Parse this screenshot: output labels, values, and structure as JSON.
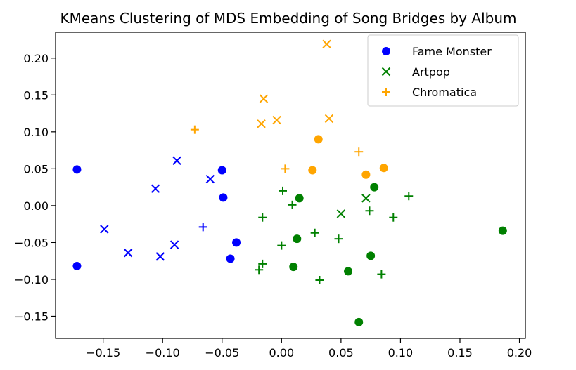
{
  "chart_data": {
    "type": "scatter",
    "title": "KMeans Clustering of MDS Embedding of Song Bridges by Album",
    "xlabel": "",
    "ylabel": "",
    "xlim": [
      -0.19,
      0.205
    ],
    "ylim": [
      -0.18,
      0.235
    ],
    "xticks": [
      -0.15,
      -0.1,
      -0.05,
      0.0,
      0.05,
      0.1,
      0.15,
      0.2
    ],
    "yticks": [
      -0.15,
      -0.1,
      -0.05,
      0.0,
      0.05,
      0.1,
      0.15,
      0.2
    ],
    "xtick_labels": [
      "−0.15",
      "−0.10",
      "−0.05",
      "0.00",
      "0.05",
      "0.10",
      "0.15",
      "0.20"
    ],
    "ytick_labels": [
      "−0.15",
      "−0.10",
      "−0.05",
      "0.00",
      "0.05",
      "0.10",
      "0.15",
      "0.20"
    ],
    "grid": false,
    "legend_position": "top-right",
    "legend": [
      {
        "label": "Fame Monster",
        "marker": "circle",
        "color": "#0000ff"
      },
      {
        "label": "Artpop",
        "marker": "x",
        "color": "#008000"
      },
      {
        "label": "Chromatica",
        "marker": "plus",
        "color": "#ffa500"
      }
    ],
    "points": [
      {
        "x": -0.172,
        "y": 0.049,
        "marker": "circle",
        "color": "#0000ff"
      },
      {
        "x": -0.172,
        "y": -0.082,
        "marker": "circle",
        "color": "#0000ff"
      },
      {
        "x": -0.05,
        "y": 0.048,
        "marker": "circle",
        "color": "#0000ff"
      },
      {
        "x": -0.049,
        "y": 0.011,
        "marker": "circle",
        "color": "#0000ff"
      },
      {
        "x": -0.038,
        "y": -0.05,
        "marker": "circle",
        "color": "#0000ff"
      },
      {
        "x": -0.043,
        "y": -0.072,
        "marker": "circle",
        "color": "#0000ff"
      },
      {
        "x": -0.149,
        "y": -0.032,
        "marker": "x",
        "color": "#0000ff"
      },
      {
        "x": -0.129,
        "y": -0.064,
        "marker": "x",
        "color": "#0000ff"
      },
      {
        "x": -0.106,
        "y": 0.023,
        "marker": "x",
        "color": "#0000ff"
      },
      {
        "x": -0.102,
        "y": -0.069,
        "marker": "x",
        "color": "#0000ff"
      },
      {
        "x": -0.088,
        "y": 0.061,
        "marker": "x",
        "color": "#0000ff"
      },
      {
        "x": -0.09,
        "y": -0.053,
        "marker": "x",
        "color": "#0000ff"
      },
      {
        "x": -0.06,
        "y": 0.036,
        "marker": "x",
        "color": "#0000ff"
      },
      {
        "x": -0.066,
        "y": -0.029,
        "marker": "plus",
        "color": "#0000ff"
      },
      {
        "x": 0.015,
        "y": 0.01,
        "marker": "circle",
        "color": "#008000"
      },
      {
        "x": 0.013,
        "y": -0.045,
        "marker": "circle",
        "color": "#008000"
      },
      {
        "x": 0.01,
        "y": -0.083,
        "marker": "circle",
        "color": "#008000"
      },
      {
        "x": 0.056,
        "y": -0.089,
        "marker": "circle",
        "color": "#008000"
      },
      {
        "x": 0.065,
        "y": -0.158,
        "marker": "circle",
        "color": "#008000"
      },
      {
        "x": 0.075,
        "y": -0.068,
        "marker": "circle",
        "color": "#008000"
      },
      {
        "x": 0.078,
        "y": 0.025,
        "marker": "circle",
        "color": "#008000"
      },
      {
        "x": 0.186,
        "y": -0.034,
        "marker": "circle",
        "color": "#008000"
      },
      {
        "x": 0.05,
        "y": -0.011,
        "marker": "x",
        "color": "#008000"
      },
      {
        "x": 0.071,
        "y": 0.01,
        "marker": "x",
        "color": "#008000"
      },
      {
        "x": 0.001,
        "y": 0.02,
        "marker": "plus",
        "color": "#008000"
      },
      {
        "x": 0.009,
        "y": 0.001,
        "marker": "plus",
        "color": "#008000"
      },
      {
        "x": -0.016,
        "y": -0.016,
        "marker": "plus",
        "color": "#008000"
      },
      {
        "x": -0.016,
        "y": -0.079,
        "marker": "plus",
        "color": "#008000"
      },
      {
        "x": -0.019,
        "y": -0.087,
        "marker": "plus",
        "color": "#008000"
      },
      {
        "x": 0.0,
        "y": -0.054,
        "marker": "plus",
        "color": "#008000"
      },
      {
        "x": 0.028,
        "y": -0.037,
        "marker": "plus",
        "color": "#008000"
      },
      {
        "x": 0.032,
        "y": -0.101,
        "marker": "plus",
        "color": "#008000"
      },
      {
        "x": 0.048,
        "y": -0.045,
        "marker": "plus",
        "color": "#008000"
      },
      {
        "x": 0.074,
        "y": -0.007,
        "marker": "plus",
        "color": "#008000"
      },
      {
        "x": 0.094,
        "y": -0.016,
        "marker": "plus",
        "color": "#008000"
      },
      {
        "x": 0.107,
        "y": 0.013,
        "marker": "plus",
        "color": "#008000"
      },
      {
        "x": 0.084,
        "y": -0.093,
        "marker": "plus",
        "color": "#008000"
      },
      {
        "x": 0.031,
        "y": 0.09,
        "marker": "circle",
        "color": "#ffa500"
      },
      {
        "x": 0.026,
        "y": 0.048,
        "marker": "circle",
        "color": "#ffa500"
      },
      {
        "x": 0.071,
        "y": 0.042,
        "marker": "circle",
        "color": "#ffa500"
      },
      {
        "x": 0.086,
        "y": 0.051,
        "marker": "circle",
        "color": "#ffa500"
      },
      {
        "x": 0.038,
        "y": 0.219,
        "marker": "x",
        "color": "#ffa500"
      },
      {
        "x": -0.015,
        "y": 0.145,
        "marker": "x",
        "color": "#ffa500"
      },
      {
        "x": -0.017,
        "y": 0.111,
        "marker": "x",
        "color": "#ffa500"
      },
      {
        "x": -0.004,
        "y": 0.116,
        "marker": "x",
        "color": "#ffa500"
      },
      {
        "x": 0.04,
        "y": 0.118,
        "marker": "x",
        "color": "#ffa500"
      },
      {
        "x": -0.073,
        "y": 0.103,
        "marker": "plus",
        "color": "#ffa500"
      },
      {
        "x": 0.003,
        "y": 0.05,
        "marker": "plus",
        "color": "#ffa500"
      },
      {
        "x": 0.065,
        "y": 0.073,
        "marker": "plus",
        "color": "#ffa500"
      }
    ]
  }
}
